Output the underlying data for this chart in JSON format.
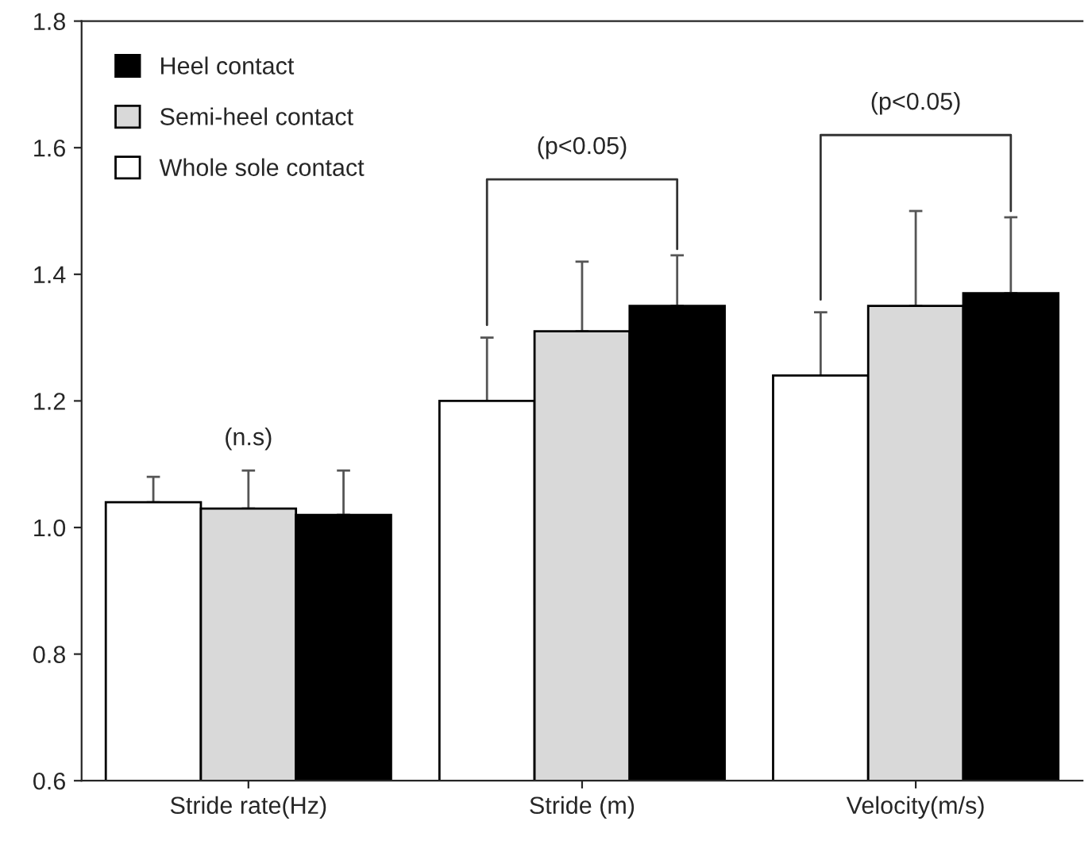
{
  "chart_data": {
    "type": "bar",
    "categories": [
      "Stride rate(Hz)",
      "Stride (m)",
      "Velocity(m/s)"
    ],
    "series": [
      {
        "name": "Whole sole contact",
        "color": "#ffffff",
        "values": [
          1.04,
          1.2,
          1.24
        ],
        "errors": [
          [
            1.04,
            1.08
          ],
          [
            1.2,
            1.3
          ],
          [
            1.24,
            1.34
          ]
        ]
      },
      {
        "name": "Semi-heel contact",
        "color": "#d9d9d9",
        "values": [
          1.03,
          1.31,
          1.35
        ],
        "errors": [
          [
            1.03,
            1.09
          ],
          [
            1.31,
            1.42
          ],
          [
            1.35,
            1.5
          ]
        ]
      },
      {
        "name": "Heel contact",
        "color": "#000000",
        "values": [
          1.02,
          1.35,
          1.37
        ],
        "errors": [
          [
            1.02,
            1.09
          ],
          [
            1.35,
            1.43
          ],
          [
            1.37,
            1.49
          ]
        ]
      }
    ],
    "ylim": [
      0.6,
      1.8
    ],
    "yticks": [
      {
        "value": 0.6,
        "label": "0.6"
      },
      {
        "value": 0.8,
        "label": "0.8"
      },
      {
        "value": 1.0,
        "label": "1.0"
      },
      {
        "value": 1.2,
        "label": "1.2"
      },
      {
        "value": 1.4,
        "label": "1.4"
      },
      {
        "value": 1.6,
        "label": "1.6"
      },
      {
        "value": 1.8,
        "label": "1.8"
      }
    ],
    "annotations": [
      "(n.s)",
      "(p<0.05)",
      "(p<0.05)"
    ],
    "legend": "top left",
    "grid": false
  }
}
